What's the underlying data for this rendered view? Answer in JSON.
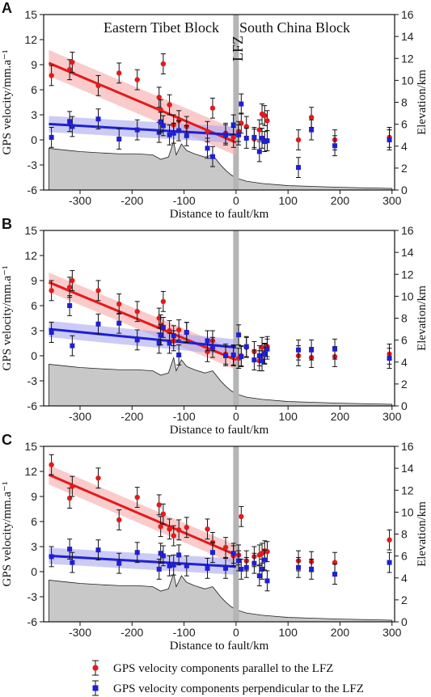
{
  "figure": {
    "legend": {
      "parallel_label": "GPS velocity components parallel to the LFZ",
      "perpendicular_label": "GPS velocity components perpendicular to the LFZ"
    },
    "block_labels": {
      "left": "Eastern Tibet Block",
      "right": "South China Block",
      "fault": "LFZ"
    }
  },
  "colors": {
    "parallel": "#e31a1c",
    "perpendicular": "#1f1fd6",
    "parallel_band": "#f7a9a9",
    "perpendicular_band": "#a9a9ef",
    "terrain": "#c8c8c8",
    "fault": "#b5b5b5"
  },
  "chart_data": [
    {
      "panel": "A",
      "type": "scatter",
      "xlabel": "Distance to fault/km",
      "ylabel": "GPS velocity/mm.a⁻¹",
      "y2label": "Elevation/km",
      "xlim": [
        -370,
        305
      ],
      "ylim": [
        -6,
        15
      ],
      "y2lim": [
        0,
        16
      ],
      "xticks": [
        -300,
        -200,
        -100,
        0,
        100,
        200,
        300
      ],
      "yticks": [
        -6,
        -3,
        0,
        3,
        6,
        9,
        12,
        15
      ],
      "y2ticks": [
        0,
        2,
        4,
        6,
        8,
        10,
        12,
        14,
        16
      ],
      "parallel_fit": {
        "x": [
          -360,
          0
        ],
        "y": [
          9.2,
          -0.3
        ]
      },
      "perpendicular_fit": {
        "x": [
          -360,
          0
        ],
        "y": [
          1.9,
          0.6
        ]
      },
      "series": [
        {
          "name": "GPS velocity components parallel to the LFZ",
          "x": [
            -355,
            -320,
            -315,
            -265,
            -225,
            -190,
            -148,
            -145,
            -140,
            -128,
            -120,
            -110,
            -95,
            -55,
            -45,
            -20,
            -5,
            5,
            10,
            20,
            35,
            45,
            50,
            55,
            60,
            120,
            145,
            190,
            295
          ],
          "y": [
            7.7,
            8.4,
            9.3,
            6.5,
            8.0,
            7.2,
            5.1,
            3.6,
            9.1,
            4.2,
            1.8,
            2.3,
            1.6,
            1.0,
            3.8,
            0.8,
            0.3,
            1.0,
            2.0,
            1.6,
            0.1,
            1.2,
            3.1,
            2.9,
            2.3,
            0.0,
            2.7,
            0.0,
            0.3
          ],
          "err": [
            1.2,
            1.2,
            1.2,
            1.2,
            1.2,
            1.2,
            1.2,
            1.2,
            1.2,
            1.2,
            1.2,
            1.2,
            1.2,
            1.2,
            1.2,
            1.2,
            1.2,
            1.2,
            1.2,
            1.2,
            1.2,
            1.2,
            1.2,
            1.2,
            1.2,
            1.2,
            1.2,
            1.2,
            1.2
          ]
        },
        {
          "name": "GPS velocity components perpendicular to the LFZ",
          "x": [
            -355,
            -320,
            -315,
            -265,
            -225,
            -190,
            -148,
            -145,
            -140,
            -128,
            -120,
            -110,
            -95,
            -55,
            -45,
            -20,
            -5,
            5,
            10,
            20,
            35,
            45,
            50,
            55,
            60,
            120,
            145,
            190,
            295
          ],
          "y": [
            0.3,
            2.2,
            1.6,
            2.5,
            0.1,
            1.2,
            0.9,
            2.1,
            1.7,
            0.6,
            0.8,
            1.1,
            0.5,
            -1.0,
            -2.0,
            0.6,
            1.8,
            0.6,
            4.3,
            0.2,
            0.3,
            -1.4,
            0.2,
            -0.2,
            -0.1,
            -3.3,
            1.2,
            -0.7,
            0.0
          ],
          "err": [
            1.2,
            1.2,
            1.2,
            1.2,
            1.2,
            1.2,
            1.2,
            1.2,
            1.2,
            1.2,
            1.2,
            1.2,
            1.2,
            1.2,
            1.2,
            1.2,
            1.2,
            1.2,
            1.2,
            1.2,
            1.2,
            1.2,
            1.2,
            1.2,
            1.2,
            1.2,
            1.2,
            1.2,
            1.2
          ]
        }
      ],
      "elevation": {
        "x": [
          -360,
          -320,
          -300,
          -265,
          -225,
          -190,
          -160,
          -145,
          -130,
          -120,
          -115,
          -105,
          -95,
          -80,
          -60,
          -45,
          -30,
          -20,
          -10,
          0,
          20,
          50,
          100,
          200,
          300
        ],
        "y": [
          3.8,
          3.6,
          3.5,
          3.4,
          3.3,
          3.3,
          3.2,
          2.8,
          3.0,
          4.4,
          3.2,
          4.2,
          3.6,
          3.3,
          3.0,
          3.2,
          2.3,
          1.8,
          1.4,
          1.1,
          0.8,
          0.6,
          0.4,
          0.25,
          0.15
        ]
      }
    },
    {
      "panel": "B",
      "type": "scatter",
      "xlabel": "Distance to fault/km",
      "ylabel": "GPS velocity/mm.a⁻¹",
      "y2label": "Elevation/km",
      "xlim": [
        -370,
        305
      ],
      "ylim": [
        -6,
        15
      ],
      "y2lim": [
        0,
        16
      ],
      "xticks": [
        -300,
        -200,
        -100,
        0,
        100,
        200,
        300
      ],
      "yticks": [
        -6,
        -3,
        0,
        3,
        6,
        9,
        12,
        15
      ],
      "y2ticks": [
        0,
        2,
        4,
        6,
        8,
        10,
        12,
        14,
        16
      ],
      "parallel_fit": {
        "x": [
          -360,
          0
        ],
        "y": [
          8.8,
          -0.5
        ]
      },
      "perpendicular_fit": {
        "x": [
          -360,
          0
        ],
        "y": [
          3.2,
          1.0
        ]
      },
      "series": [
        {
          "name": "GPS velocity components parallel to the LFZ",
          "x": [
            -355,
            -320,
            -315,
            -265,
            -225,
            -190,
            -148,
            -145,
            -140,
            -128,
            -120,
            -110,
            -95,
            -55,
            -45,
            -20,
            -5,
            5,
            10,
            20,
            35,
            45,
            50,
            55,
            60,
            120,
            145,
            190,
            295
          ],
          "y": [
            7.8,
            8.2,
            9.0,
            7.8,
            6.2,
            5.3,
            4.5,
            3.7,
            6.5,
            3.0,
            1.8,
            3.1,
            2.8,
            0.5,
            1.8,
            0.2,
            0.0,
            -0.3,
            0.0,
            1.0,
            0.5,
            -0.6,
            1.0,
            0.3,
            1.1,
            0.0,
            -0.2,
            -0.1,
            0.2
          ],
          "err": [
            1.2,
            1.2,
            1.2,
            1.2,
            1.2,
            1.2,
            1.2,
            1.2,
            1.2,
            1.2,
            1.2,
            1.2,
            1.2,
            1.2,
            1.2,
            1.2,
            1.2,
            1.2,
            1.2,
            1.2,
            1.2,
            1.2,
            1.2,
            1.2,
            1.2,
            1.2,
            1.2,
            1.2,
            1.2
          ]
        },
        {
          "name": "GPS velocity components perpendicular to the LFZ",
          "x": [
            -355,
            -320,
            -315,
            -265,
            -225,
            -190,
            -148,
            -145,
            -140,
            -128,
            -120,
            -110,
            -95,
            -55,
            -45,
            -20,
            -5,
            5,
            10,
            20,
            35,
            45,
            50,
            55,
            60,
            120,
            145,
            190,
            295
          ],
          "y": [
            2.8,
            6.0,
            1.2,
            3.8,
            3.9,
            1.9,
            1.5,
            2.5,
            3.4,
            1.5,
            2.4,
            0.1,
            2.8,
            1.8,
            1.0,
            0.0,
            0.1,
            2.5,
            -0.1,
            1.1,
            -0.5,
            0.0,
            -0.6,
            0.2,
            0.8,
            0.7,
            0.7,
            0.8,
            -0.3
          ],
          "err": [
            1.2,
            1.2,
            1.2,
            1.2,
            1.2,
            1.2,
            1.2,
            1.2,
            1.2,
            1.2,
            1.2,
            1.2,
            1.2,
            1.2,
            1.2,
            1.2,
            1.2,
            1.2,
            1.2,
            1.2,
            1.2,
            1.2,
            1.2,
            1.2,
            1.2,
            1.2,
            1.2,
            1.2,
            1.2
          ]
        }
      ],
      "elevation": {
        "x": [
          -360,
          -320,
          -300,
          -265,
          -225,
          -190,
          -160,
          -145,
          -130,
          -120,
          -115,
          -105,
          -95,
          -80,
          -60,
          -45,
          -30,
          -20,
          -10,
          0,
          20,
          50,
          100,
          200,
          300
        ],
        "y": [
          3.8,
          3.6,
          3.5,
          3.4,
          3.3,
          3.3,
          3.2,
          2.8,
          3.0,
          4.4,
          3.2,
          4.2,
          3.6,
          3.3,
          3.0,
          3.2,
          2.3,
          1.8,
          1.4,
          1.1,
          0.8,
          0.6,
          0.4,
          0.25,
          0.15
        ]
      }
    },
    {
      "panel": "C",
      "type": "scatter",
      "xlabel": "Distance to fault/km",
      "ylabel": "GPS velocity/mm.a⁻¹",
      "y2label": "Elevation/km",
      "xlim": [
        -370,
        305
      ],
      "ylim": [
        -6,
        15
      ],
      "y2lim": [
        0,
        16
      ],
      "xticks": [
        -300,
        -200,
        -100,
        0,
        100,
        200,
        300
      ],
      "yticks": [
        -6,
        -3,
        0,
        3,
        6,
        9,
        12,
        15
      ],
      "y2ticks": [
        0,
        2,
        4,
        6,
        8,
        10,
        12,
        14,
        16
      ],
      "parallel_fit": {
        "x": [
          -360,
          0
        ],
        "y": [
          11.6,
          2.0
        ]
      },
      "perpendicular_fit": {
        "x": [
          -360,
          0
        ],
        "y": [
          1.9,
          0.6
        ]
      },
      "series": [
        {
          "name": "GPS velocity components parallel to the LFZ",
          "x": [
            -355,
            -320,
            -315,
            -265,
            -225,
            -190,
            -148,
            -145,
            -140,
            -128,
            -120,
            -110,
            -95,
            -55,
            -45,
            -20,
            -5,
            5,
            10,
            20,
            35,
            45,
            50,
            55,
            60,
            120,
            145,
            190,
            295
          ],
          "y": [
            12.8,
            8.8,
            10.2,
            11.2,
            6.2,
            8.9,
            8.0,
            5.4,
            6.9,
            5.1,
            4.3,
            5.0,
            5.3,
            5.1,
            3.5,
            2.9,
            1.9,
            2.0,
            6.6,
            1.3,
            1.8,
            2.0,
            2.2,
            2.5,
            2.4,
            1.3,
            1.2,
            1.1,
            3.8
          ],
          "err": [
            1.2,
            1.2,
            1.2,
            1.2,
            1.2,
            1.2,
            1.2,
            1.2,
            1.2,
            1.2,
            1.2,
            1.2,
            1.2,
            1.2,
            1.2,
            1.2,
            1.2,
            1.2,
            1.2,
            1.2,
            1.2,
            1.2,
            1.2,
            1.2,
            1.2,
            1.2,
            1.2,
            1.2,
            1.2
          ]
        },
        {
          "name": "GPS velocity components perpendicular to the LFZ",
          "x": [
            -355,
            -320,
            -315,
            -265,
            -225,
            -190,
            -148,
            -145,
            -140,
            -128,
            -120,
            -110,
            -95,
            -55,
            -45,
            -20,
            -5,
            5,
            10,
            20,
            35,
            45,
            50,
            55,
            60,
            120,
            145,
            190,
            295
          ],
          "y": [
            1.8,
            2.7,
            1.1,
            2.6,
            1.0,
            2.3,
            0.3,
            2.2,
            1.9,
            0.7,
            0.8,
            2.0,
            0.7,
            0.4,
            2.3,
            0.4,
            2.2,
            1.3,
            0.3,
            0.5,
            1.0,
            -0.5,
            0.3,
            1.4,
            -1.1,
            0.5,
            0.3,
            -0.3,
            1.1
          ],
          "err": [
            1.2,
            1.2,
            1.2,
            1.2,
            1.2,
            1.2,
            1.2,
            1.2,
            1.2,
            1.2,
            1.2,
            1.2,
            1.2,
            1.2,
            1.2,
            1.2,
            1.2,
            1.2,
            1.2,
            1.2,
            1.2,
            1.2,
            1.2,
            1.2,
            1.2,
            1.2,
            1.2,
            1.2,
            1.2
          ]
        }
      ],
      "elevation": {
        "x": [
          -360,
          -320,
          -300,
          -265,
          -225,
          -190,
          -160,
          -145,
          -130,
          -120,
          -115,
          -105,
          -95,
          -80,
          -60,
          -45,
          -30,
          -20,
          -10,
          0,
          20,
          50,
          100,
          200,
          300
        ],
        "y": [
          3.8,
          3.6,
          3.5,
          3.4,
          3.3,
          3.3,
          3.2,
          2.8,
          3.0,
          4.4,
          3.2,
          4.2,
          3.6,
          3.3,
          3.0,
          3.2,
          2.3,
          1.8,
          1.4,
          1.1,
          0.8,
          0.6,
          0.4,
          0.25,
          0.15
        ]
      }
    }
  ]
}
